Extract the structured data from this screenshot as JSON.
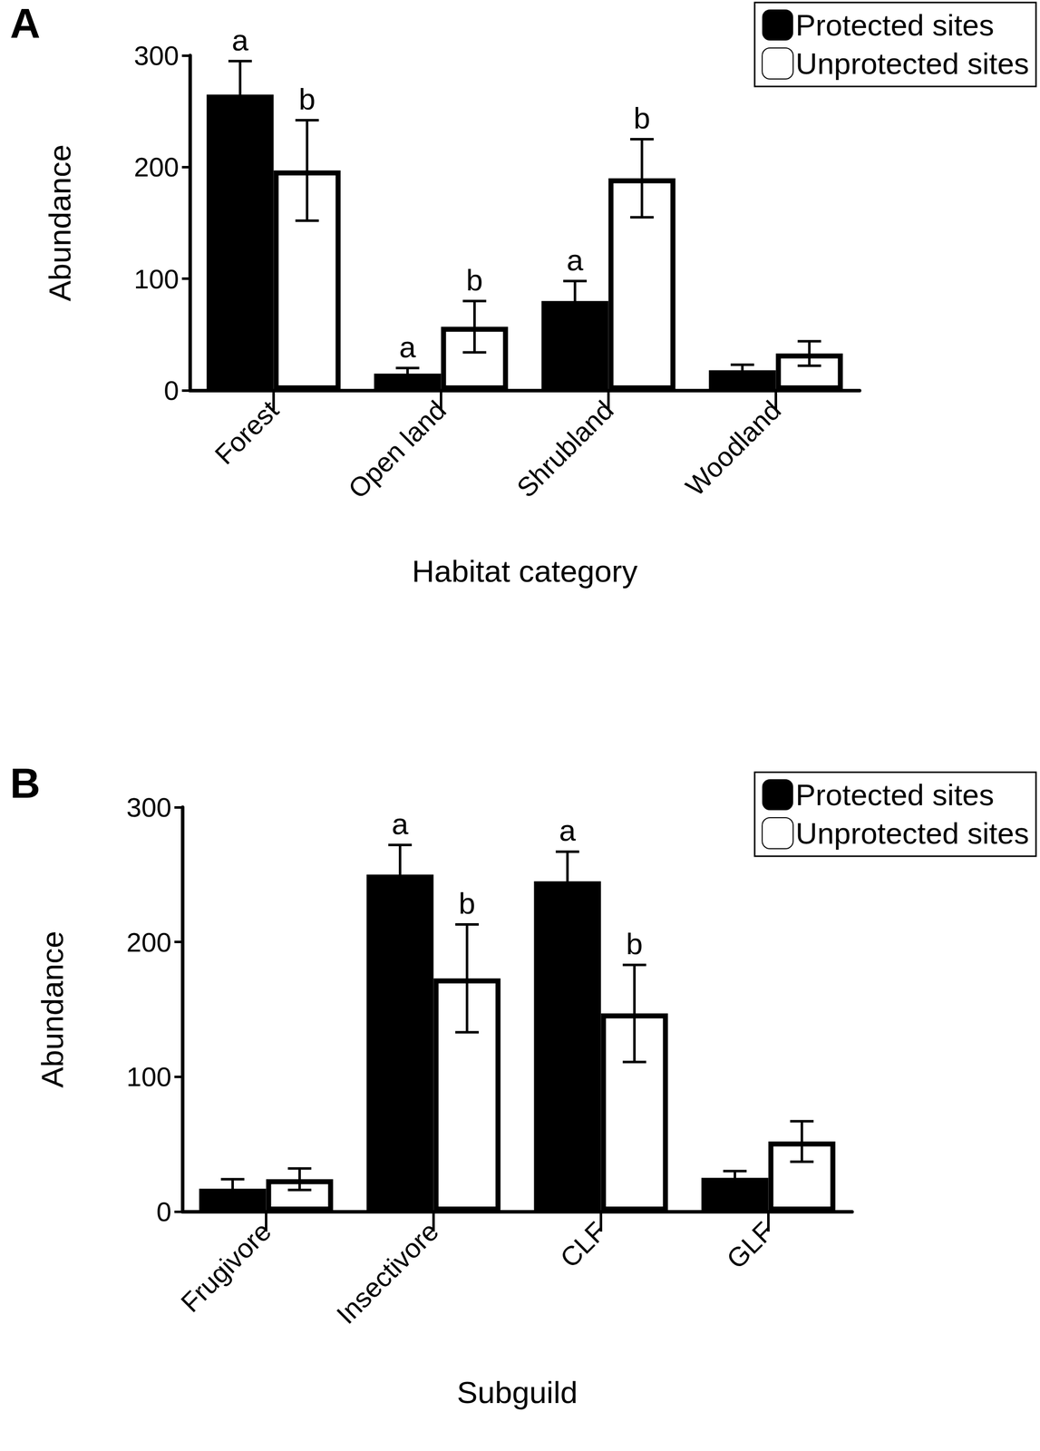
{
  "chart_data": [
    {
      "type": "bar",
      "title": "A",
      "x_label": "Habitat category",
      "y_label": "Abundance",
      "categories": [
        "Forest",
        "Open land",
        "Shrubland",
        "Woodland"
      ],
      "series": [
        {
          "name": "Protected sites",
          "color": "#000000",
          "values": [
            265,
            15,
            80,
            18
          ],
          "errors": [
            30,
            5,
            18,
            5
          ],
          "annotations": [
            "a",
            "a",
            "a",
            null
          ]
        },
        {
          "name": "Unprotected sites",
          "color": "#ffffff",
          "values": [
            197,
            57,
            190,
            33
          ],
          "errors": [
            45,
            23,
            35,
            11
          ],
          "annotations": [
            "b",
            "b",
            "b",
            null
          ]
        }
      ],
      "ylim": [
        0,
        300
      ],
      "yticks": [
        0,
        100,
        200,
        300
      ],
      "grid": false,
      "legend": "upper right"
    },
    {
      "type": "bar",
      "title": "B",
      "x_label": "Subguild",
      "y_label": "Abundance",
      "categories": [
        "Frugivore",
        "Insectivore",
        "CLF",
        "GLF"
      ],
      "series": [
        {
          "name": "Protected sites",
          "color": "#000000",
          "values": [
            17,
            250,
            245,
            25
          ],
          "errors": [
            7,
            22,
            22,
            5
          ],
          "annotations": [
            null,
            "a",
            "a",
            null
          ]
        },
        {
          "name": "Unprotected sites",
          "color": "#ffffff",
          "values": [
            24,
            173,
            147,
            52
          ],
          "errors": [
            8,
            40,
            36,
            15
          ],
          "annotations": [
            null,
            "b",
            "b",
            null
          ]
        }
      ],
      "ylim": [
        0,
        300
      ],
      "yticks": [
        0,
        100,
        200,
        300
      ],
      "grid": false,
      "legend": "upper right"
    }
  ]
}
